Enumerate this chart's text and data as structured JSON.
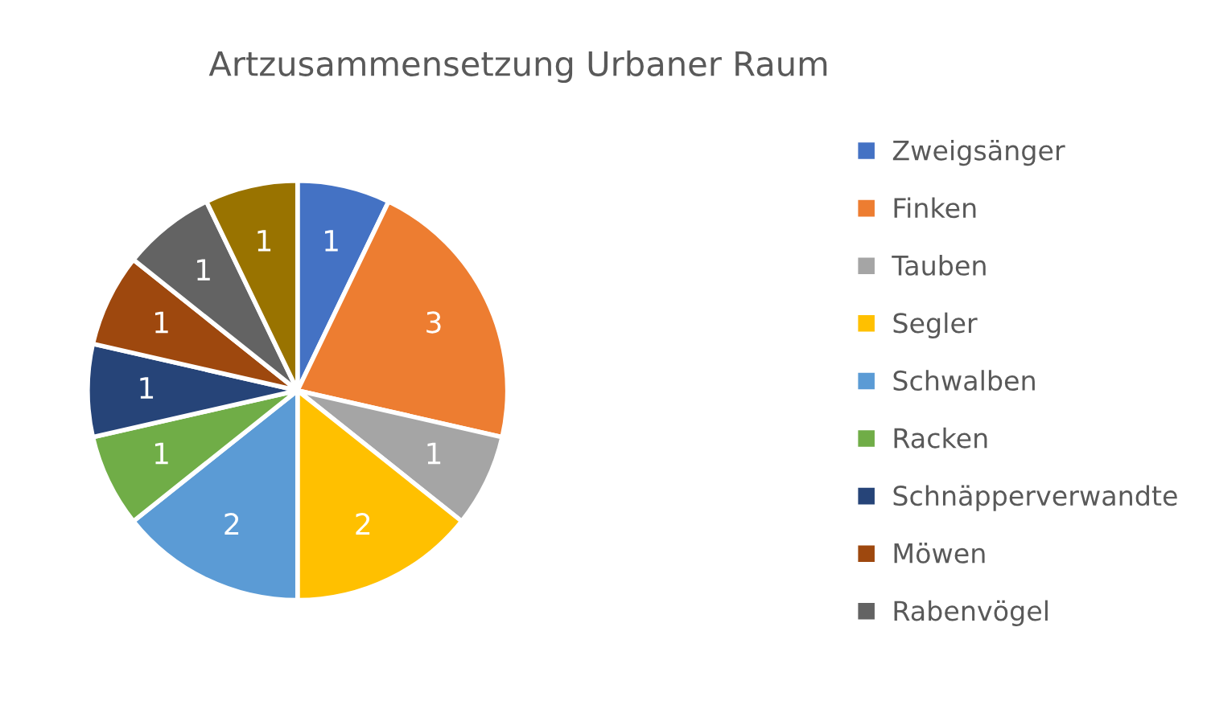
{
  "chart_data": {
    "type": "pie",
    "title": "Artzusammensetzung Urbaner Raum",
    "categories": [
      "Zweigsänger",
      "Finken",
      "Tauben",
      "Segler",
      "Schwalben",
      "Racken",
      "Schnäpperverwandte",
      "Möwen",
      "Rabenvögel",
      null
    ],
    "values": [
      1,
      3,
      1,
      2,
      2,
      1,
      1,
      1,
      1,
      1
    ],
    "colors": [
      "#4472c4",
      "#ed7d31",
      "#a5a5a5",
      "#ffc000",
      "#5b9bd5",
      "#70ad47",
      "#264478",
      "#9e480e",
      "#636363",
      "#997300"
    ],
    "data_labels": true,
    "legend": "right"
  }
}
